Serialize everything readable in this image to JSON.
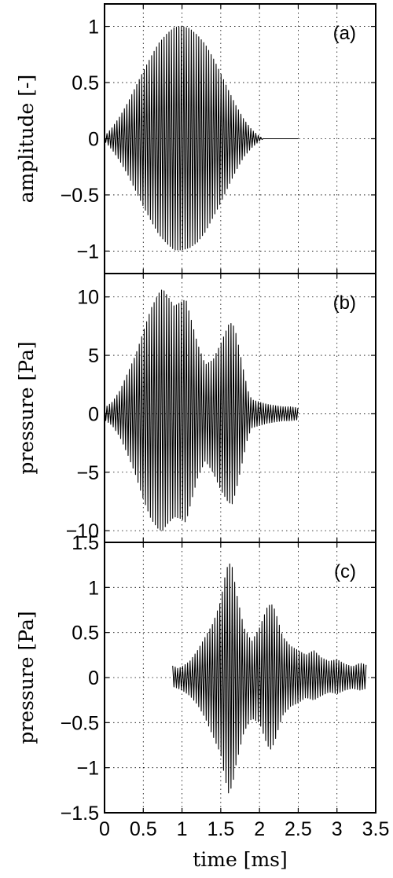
{
  "chart_data": [
    {
      "type": "line",
      "panel": "(a)",
      "ylabel": "amplitude [-]",
      "xlabel": "",
      "xlim": [
        0,
        3.5
      ],
      "ylim": [
        -1.2,
        1.2
      ],
      "grid": true,
      "x_ticks": [
        0,
        0.5,
        1,
        1.5,
        2,
        2.5,
        3,
        3.5
      ],
      "y_ticks": [
        -1,
        -0.5,
        0,
        0.5,
        1
      ],
      "y_tick_labels": [
        "−1",
        "−0.5",
        "0",
        "0.5",
        "1"
      ],
      "series": [
        {
          "style": "oscillation",
          "color": "#000000",
          "x_start": 0,
          "x_end": 2.5,
          "carrier_period_ms": 0.032,
          "envelope": {
            "t": [
              0,
              0.1,
              0.2,
              0.3,
              0.4,
              0.5,
              0.6,
              0.7,
              0.8,
              0.9,
              1.0,
              1.1,
              1.2,
              1.3,
              1.4,
              1.5,
              1.6,
              1.7,
              1.8,
              1.9,
              2.0,
              2.05,
              2.5
            ],
            "upper": [
              0.02,
              0.1,
              0.2,
              0.32,
              0.46,
              0.6,
              0.73,
              0.85,
              0.93,
              0.99,
              1.0,
              0.98,
              0.92,
              0.84,
              0.72,
              0.58,
              0.43,
              0.29,
              0.17,
              0.08,
              0.02,
              0.0,
              0.0
            ],
            "lower": [
              -0.02,
              -0.1,
              -0.2,
              -0.32,
              -0.46,
              -0.6,
              -0.73,
              -0.85,
              -0.93,
              -0.99,
              -0.99,
              -0.97,
              -0.92,
              -0.83,
              -0.7,
              -0.57,
              -0.42,
              -0.28,
              -0.16,
              -0.08,
              -0.02,
              0.0,
              0.0
            ]
          }
        }
      ]
    },
    {
      "type": "line",
      "panel": "(b)",
      "ylabel": "pressure [Pa]",
      "xlabel": "",
      "xlim": [
        0,
        3.5
      ],
      "ylim": [
        -11,
        12
      ],
      "grid": true,
      "x_ticks": [
        0,
        0.5,
        1,
        1.5,
        2,
        2.5,
        3,
        3.5
      ],
      "y_ticks": [
        -10,
        -5,
        0,
        5,
        10
      ],
      "y_tick_labels": [
        "−10",
        "−5",
        "0",
        "5",
        "10"
      ],
      "series": [
        {
          "style": "oscillation",
          "color": "#000000",
          "x_start": 0,
          "x_end": 2.5,
          "carrier_period_ms": 0.032,
          "envelope": {
            "t": [
              0,
              0.1,
              0.2,
              0.3,
              0.4,
              0.5,
              0.6,
              0.7,
              0.75,
              0.8,
              0.9,
              1.0,
              1.05,
              1.1,
              1.2,
              1.3,
              1.4,
              1.5,
              1.6,
              1.65,
              1.7,
              1.8,
              1.85,
              1.9,
              2.0,
              2.1,
              2.2,
              2.3,
              2.4,
              2.5
            ],
            "upper": [
              0.5,
              1.0,
              2.0,
              3.5,
              5.0,
              7.0,
              9.0,
              10.3,
              10.7,
              10.2,
              9.2,
              9.6,
              9.8,
              8.5,
              6.0,
              4.2,
              4.6,
              6.0,
              7.6,
              7.8,
              6.8,
              3.5,
              2.0,
              1.2,
              1.0,
              0.8,
              0.7,
              0.6,
              0.6,
              0.5
            ],
            "lower": [
              -0.5,
              -1.0,
              -2.0,
              -3.5,
              -5.2,
              -7.3,
              -9.0,
              -9.9,
              -10.0,
              -9.5,
              -8.8,
              -9.0,
              -9.3,
              -8.0,
              -5.5,
              -4.0,
              -5.0,
              -6.5,
              -7.6,
              -7.7,
              -6.5,
              -3.5,
              -2.0,
              -1.2,
              -1.0,
              -0.8,
              -0.7,
              -0.6,
              -0.6,
              -0.5
            ]
          }
        }
      ]
    },
    {
      "type": "line",
      "panel": "(c)",
      "ylabel": "pressure [Pa]",
      "xlabel": "time [ms]",
      "xlim": [
        0,
        3.5
      ],
      "ylim": [
        -1.5,
        1.5
      ],
      "grid": true,
      "x_ticks": [
        0,
        0.5,
        1,
        1.5,
        2,
        2.5,
        3,
        3.5
      ],
      "x_tick_labels": [
        "0",
        "0.5",
        "1",
        "1.5",
        "2",
        "2.5",
        "3",
        "3.5"
      ],
      "y_ticks": [
        -1.5,
        -1,
        -0.5,
        0,
        0.5,
        1,
        1.5
      ],
      "y_tick_labels": [
        "−1.5",
        "−1",
        "−0.5",
        "0",
        "0.5",
        "1",
        "1.5"
      ],
      "series": [
        {
          "style": "oscillation",
          "color": "#000000",
          "x_start": 0.88,
          "x_end": 3.38,
          "carrier_period_ms": 0.032,
          "envelope": {
            "t": [
              0.88,
              0.95,
              1.0,
              1.1,
              1.2,
              1.3,
              1.4,
              1.5,
              1.55,
              1.6,
              1.65,
              1.7,
              1.8,
              1.9,
              2.0,
              2.1,
              2.15,
              2.2,
              2.25,
              2.3,
              2.4,
              2.5,
              2.6,
              2.7,
              2.8,
              2.9,
              3.0,
              3.1,
              3.2,
              3.3,
              3.38
            ],
            "upper": [
              0.13,
              0.1,
              0.12,
              0.18,
              0.3,
              0.45,
              0.6,
              0.85,
              1.1,
              1.28,
              1.22,
              0.95,
              0.55,
              0.4,
              0.55,
              0.78,
              0.82,
              0.75,
              0.6,
              0.45,
              0.35,
              0.3,
              0.25,
              0.3,
              0.22,
              0.18,
              0.2,
              0.15,
              0.12,
              0.16,
              0.14
            ],
            "lower": [
              -0.1,
              -0.12,
              -0.14,
              -0.2,
              -0.3,
              -0.45,
              -0.65,
              -0.85,
              -1.1,
              -1.28,
              -1.2,
              -0.95,
              -0.6,
              -0.45,
              -0.5,
              -0.75,
              -0.8,
              -0.7,
              -0.55,
              -0.42,
              -0.32,
              -0.28,
              -0.22,
              -0.25,
              -0.2,
              -0.16,
              -0.18,
              -0.14,
              -0.12,
              -0.14,
              -0.12
            ]
          }
        }
      ]
    }
  ]
}
